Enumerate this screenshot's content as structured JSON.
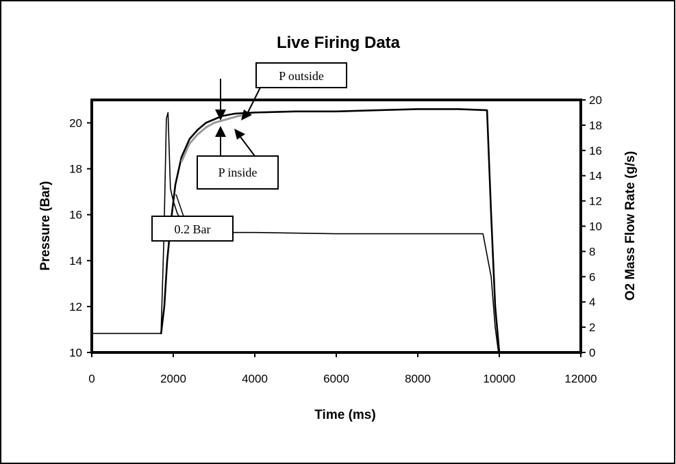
{
  "chart_data": {
    "type": "line",
    "title": "Live Firing Data",
    "xlabel": "Time (ms)",
    "ylabel": "Pressure (Bar)",
    "ylabel_right": "O2 Mass Flow Rate (g/s)",
    "xlim": [
      0,
      12000
    ],
    "ylim": [
      10,
      21
    ],
    "ylim_right": [
      0,
      20
    ],
    "x_ticks": [
      "0",
      "2000",
      "4000",
      "6000",
      "8000",
      "10000",
      "12000"
    ],
    "y_ticks": [
      "10",
      "12",
      "14",
      "16",
      "18",
      "20"
    ],
    "y_ticks_right": [
      "0",
      "2",
      "4",
      "6",
      "8",
      "10",
      "12",
      "14",
      "16",
      "18",
      "20"
    ],
    "grid": false,
    "series": [
      {
        "name": "P outside",
        "axis": "left",
        "x": [
          1700,
          1780,
          1850,
          1950,
          2050,
          2200,
          2400,
          2600,
          2800,
          3000,
          3200,
          3500,
          4000,
          5000,
          6000,
          7000,
          8000,
          9000,
          9700,
          9800,
          9900,
          10000
        ],
        "y": [
          10.8,
          12.0,
          14.0,
          15.8,
          17.3,
          18.5,
          19.3,
          19.7,
          20.0,
          20.15,
          20.3,
          20.4,
          20.45,
          20.5,
          20.5,
          20.55,
          20.6,
          20.6,
          20.55,
          16.0,
          12.0,
          10.0
        ]
      },
      {
        "name": "P inside",
        "axis": "left",
        "x": [
          2200,
          2400,
          2600,
          2800,
          3000,
          3200,
          3400,
          3600,
          3800
        ],
        "y": [
          18.3,
          19.1,
          19.5,
          19.8,
          20.0,
          20.1,
          20.2,
          20.3,
          20.35
        ]
      },
      {
        "name": "O2 Mass Flow Rate",
        "axis": "right",
        "x": [
          0,
          1700,
          1770,
          1830,
          1870,
          1930,
          2000,
          2100,
          2300,
          2600,
          3000,
          4000,
          6000,
          8000,
          9600,
          9800,
          9900,
          9980
        ],
        "y": [
          1.5,
          1.5,
          9.0,
          18.5,
          19.0,
          13.0,
          12.0,
          11.0,
          10.0,
          9.6,
          9.5,
          9.5,
          9.4,
          9.4,
          9.4,
          6.0,
          2.0,
          0.0
        ]
      }
    ],
    "annotations": [
      "P outside",
      "P inside",
      "0.2 Bar"
    ]
  }
}
